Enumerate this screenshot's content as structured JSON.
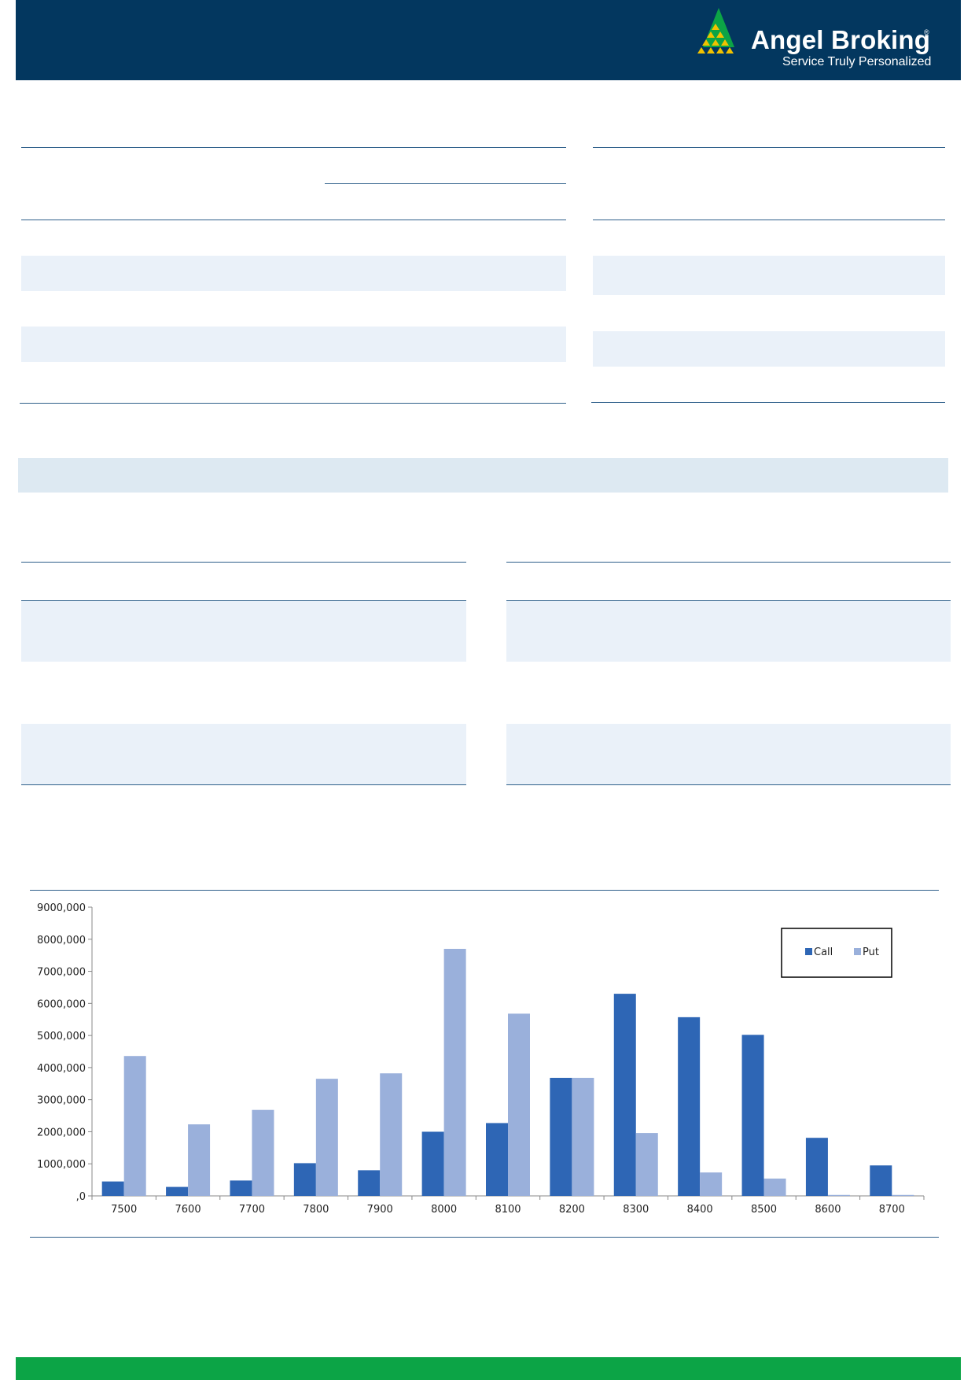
{
  "header": {
    "brand_name": "Angel Broking",
    "registered_mark": "®",
    "tagline": "Service Truly Personalized",
    "brand_color": "#03375f",
    "logo_icon": "pyramid-logo-icon"
  },
  "footer": {
    "bar_color": "#0ca446"
  },
  "chart_data": {
    "type": "bar",
    "categories": [
      "7500",
      "7600",
      "7700",
      "7800",
      "7900",
      "8000",
      "8100",
      "8200",
      "8300",
      "8400",
      "8500",
      "8600",
      "8700"
    ],
    "series": [
      {
        "name": "Call",
        "color": "#2e66b5",
        "values": [
          450000,
          280000,
          480000,
          1020000,
          800000,
          2000000,
          2270000,
          3680000,
          6300000,
          5570000,
          5020000,
          1810000,
          950000
        ]
      },
      {
        "name": "Put",
        "color": "#9ab0db",
        "values": [
          4360000,
          2230000,
          2680000,
          3650000,
          3820000,
          7700000,
          5680000,
          3680000,
          1960000,
          730000,
          540000,
          30000,
          30000
        ]
      }
    ],
    "y_ticks": [
      "9000,000",
      "8000,000",
      "7000,000",
      "6000,000",
      "5000,000",
      "4000,000",
      "3000,000",
      "2000,000",
      "1000,000",
      ",0"
    ],
    "ylim": [
      0,
      9000000
    ],
    "legend_position": "top-right",
    "grid": false
  }
}
